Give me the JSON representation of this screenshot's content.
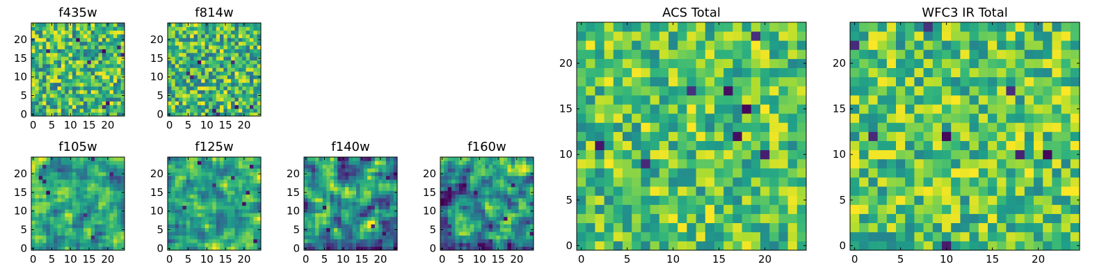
{
  "chart_data": [
    {
      "type": "heatmap",
      "title": "f435w",
      "xticks": [
        0,
        5,
        10,
        15,
        20
      ],
      "yticks": [
        0,
        5,
        10,
        15,
        20
      ],
      "xlim": [
        -0.5,
        24.5
      ],
      "ylim": [
        -0.5,
        24.5
      ],
      "grid": false,
      "colormap": "viridis",
      "texture": "noise",
      "seed": 11
    },
    {
      "type": "heatmap",
      "title": "f814w",
      "xticks": [
        0,
        5,
        10,
        15,
        20
      ],
      "yticks": [
        0,
        5,
        10,
        15,
        20
      ],
      "xlim": [
        -0.5,
        24.5
      ],
      "ylim": [
        -0.5,
        24.5
      ],
      "grid": false,
      "colormap": "viridis",
      "texture": "noise",
      "seed": 23
    },
    {
      "type": "heatmap",
      "title": "f105w",
      "xticks": [
        0,
        5,
        10,
        15,
        20
      ],
      "yticks": [
        0,
        5,
        10,
        15,
        20
      ],
      "xlim": [
        -0.5,
        24.5
      ],
      "ylim": [
        -0.5,
        24.5
      ],
      "grid": false,
      "colormap": "viridis",
      "texture": "smooth",
      "seed": 37
    },
    {
      "type": "heatmap",
      "title": "f125w",
      "xticks": [
        0,
        5,
        10,
        15,
        20
      ],
      "yticks": [
        0,
        5,
        10,
        15,
        20
      ],
      "xlim": [
        -0.5,
        24.5
      ],
      "ylim": [
        -0.5,
        24.5
      ],
      "grid": false,
      "colormap": "viridis",
      "texture": "smooth",
      "seed": 41
    },
    {
      "type": "heatmap",
      "title": "f140w",
      "xticks": [
        0,
        5,
        10,
        15,
        20
      ],
      "yticks": [
        0,
        5,
        10,
        15,
        20
      ],
      "xlim": [
        -0.5,
        24.5
      ],
      "ylim": [
        -0.5,
        24.5
      ],
      "grid": false,
      "colormap": "viridis",
      "texture": "smooth-dark",
      "seed": 53
    },
    {
      "type": "heatmap",
      "title": "f160w",
      "xticks": [
        0,
        5,
        10,
        15,
        20
      ],
      "yticks": [
        0,
        5,
        10,
        15,
        20
      ],
      "xlim": [
        -0.5,
        24.5
      ],
      "ylim": [
        -0.5,
        24.5
      ],
      "grid": false,
      "colormap": "viridis",
      "texture": "smooth-dark",
      "seed": 67
    },
    {
      "type": "heatmap",
      "title": "ACS Total",
      "xticks": [
        0,
        5,
        10,
        15,
        20
      ],
      "yticks": [
        0,
        5,
        10,
        15,
        20
      ],
      "xlim": [
        -0.5,
        24.5
      ],
      "ylim": [
        -0.5,
        24.5
      ],
      "grid": false,
      "colormap": "viridis",
      "texture": "bright-noise",
      "seed": 79
    },
    {
      "type": "heatmap",
      "title": "WFC3 IR Total",
      "xticks": [
        0,
        5,
        10,
        15,
        20
      ],
      "yticks": [
        0,
        5,
        10,
        15,
        20
      ],
      "xlim": [
        -0.5,
        24.5
      ],
      "ylim": [
        -0.5,
        24.5
      ],
      "grid": false,
      "colormap": "viridis",
      "texture": "bright-noise",
      "seed": 97
    }
  ]
}
